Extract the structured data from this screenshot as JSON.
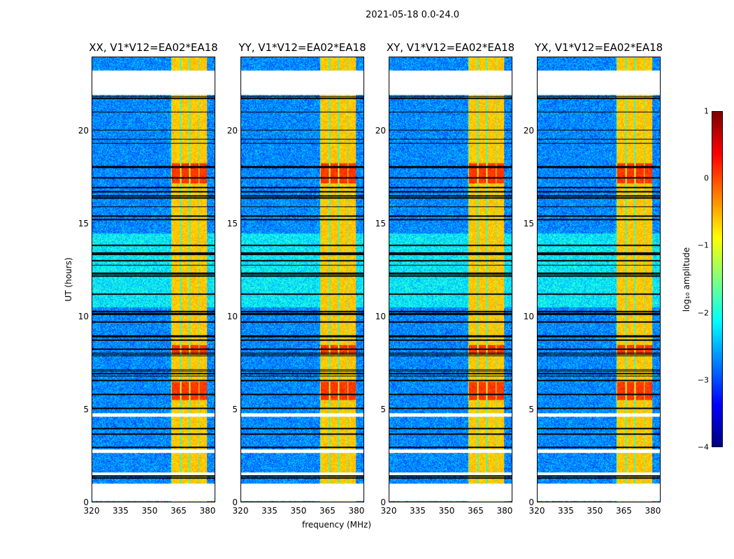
{
  "chart_data": {
    "type": "heatmap",
    "title": "2021-05-18 0.0-24.0",
    "xlabel": "frequency (MHz)",
    "ylabel": "UT (hours)",
    "xlim": [
      320,
      384
    ],
    "ylim": [
      0,
      24
    ],
    "xticks": [
      "320",
      "335",
      "350",
      "365",
      "380"
    ],
    "yticks": [
      "0",
      "5",
      "10",
      "15",
      "20"
    ],
    "panels": [
      {
        "title": "XX, V1*V12=EA02*EA18"
      },
      {
        "title": "YY, V1*V12=EA02*EA18"
      },
      {
        "title": "XY, V1*V12=EA02*EA18"
      },
      {
        "title": "YX, V1*V12=EA02*EA18"
      }
    ],
    "flagged_hours": [
      [
        0.05,
        1.0
      ],
      [
        1.45,
        1.6
      ],
      [
        2.65,
        2.85
      ],
      [
        4.6,
        4.8
      ],
      [
        22.0,
        23.3
      ]
    ],
    "strong_band_mhz": [
      361,
      380
    ],
    "background_log_amplitude": -2.7,
    "band_log_amplitude": -0.6,
    "hot_hours": [
      [
        17.2,
        18.3
      ],
      [
        5.5,
        6.5
      ],
      [
        8,
        8.5
      ]
    ],
    "colorbar": {
      "label": "log₁₀ amplitude",
      "range": [
        -4,
        1
      ],
      "ticks": [
        "1",
        "0",
        "−1",
        "−2",
        "−3",
        "−4"
      ],
      "colormap": "jet"
    }
  }
}
